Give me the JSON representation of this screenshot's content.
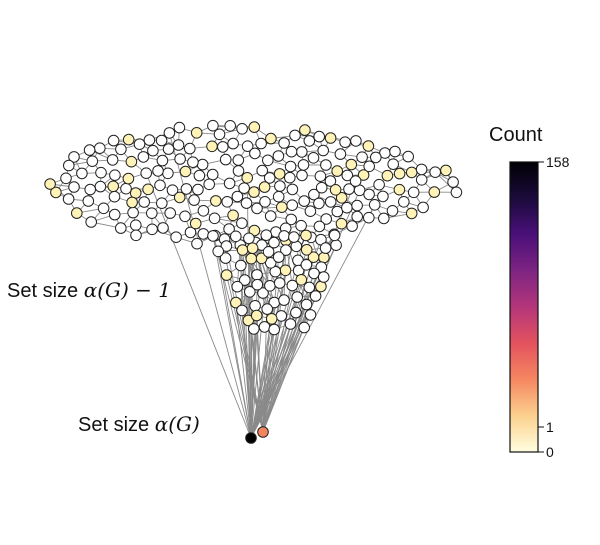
{
  "labels": {
    "top_text": "Set size",
    "top_math": "α(G) − 1",
    "bottom_text": "Set size",
    "bottom_math": "α(G)"
  },
  "colorbar": {
    "title": "Count",
    "max_label": "158",
    "one_label": "1",
    "zero_label": "0",
    "max": 158,
    "stops": [
      "#fffee0",
      "#fcd18f",
      "#f58761",
      "#e3525e",
      "#b4367a",
      "#7d2482",
      "#4a107a",
      "#1b0b3b",
      "#000004"
    ]
  },
  "colors": {
    "node_default": "#ffffff",
    "node_low": "#fff3b8",
    "node_high": "#000000",
    "node_mid": "#f4845f",
    "edge": "#8a8a8a",
    "outline": "#222222"
  }
}
